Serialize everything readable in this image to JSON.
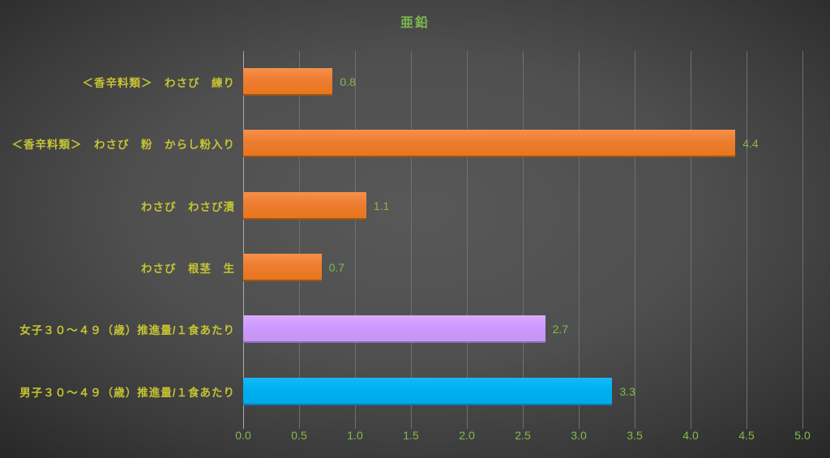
{
  "chart_data": {
    "type": "bar",
    "orientation": "horizontal",
    "title": "亜鉛",
    "categories": [
      "＜香辛料類＞　わさび　練り",
      "＜香辛料類＞　わさび　粉　からし粉入り",
      "わさび　わさび漬",
      "わさび　根茎　生",
      "女子３０～４９（歳）推進量/１食あたり",
      "男子３０～４９（歳）推進量/１食あたり"
    ],
    "values": [
      0.8,
      4.4,
      1.1,
      0.7,
      2.7,
      3.3
    ],
    "value_labels": [
      "0.8",
      "4.4",
      "1.1",
      "0.7",
      "2.7",
      "3.3"
    ],
    "bar_series": [
      "food",
      "food",
      "food",
      "food",
      "female_ref",
      "male_ref"
    ],
    "series_colors": {
      "food": {
        "base": "#ED7D31",
        "top": "#F6914A",
        "bottom": "#E8761C",
        "edge": "#9d5517"
      },
      "female_ref": {
        "base": "#CC99FF",
        "top": "#D9ACF9",
        "bottom": "#C795EF",
        "edge": "#8f6cc0"
      },
      "male_ref": {
        "base": "#00B0F0",
        "top": "#16B9F7",
        "bottom": "#00A9E9",
        "edge": "#077fb1"
      }
    },
    "xlim": [
      0,
      5
    ],
    "x_ticks": [
      "0.0",
      "0.5",
      "1.0",
      "1.5",
      "2.0",
      "2.5",
      "3.0",
      "3.5",
      "4.0",
      "4.5",
      "5.0"
    ],
    "grid": true,
    "legend": "none",
    "text_colors": {
      "title": "#7cb74c",
      "category": "#c5c433",
      "value": "#84b94f",
      "tick": "#84b94f"
    }
  }
}
